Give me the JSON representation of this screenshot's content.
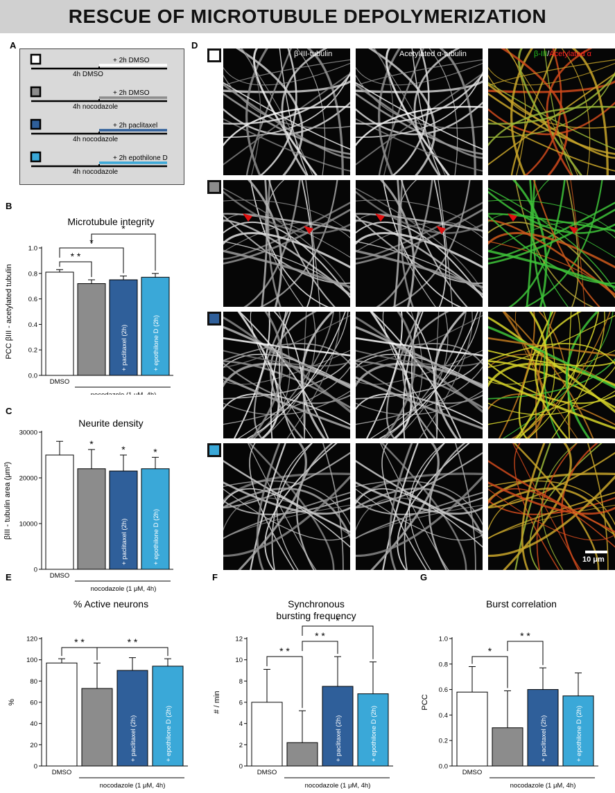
{
  "figure_title": "RESCUE OF MICROTUBULE DEPOLYMERIZATION",
  "colors": {
    "dmso": "#ffffff",
    "nocodazole": "#8c8c8c",
    "paclitaxel": "#2f5f9a",
    "epothilone": "#3aa8d8"
  },
  "panel_a": {
    "label": "A",
    "rows": [
      {
        "base": "4h DMSO",
        "treat": "+ 2h DMSO",
        "color": "#ffffff"
      },
      {
        "base": "4h nocodazole",
        "treat": "+ 2h DMSO",
        "color": "#8c8c8c"
      },
      {
        "base": "4h nocodazole",
        "treat": "+ 2h paclitaxel",
        "color": "#2f5f9a"
      },
      {
        "base": "4h nocodazole",
        "treat": "+ 2h epothilone D",
        "color": "#3aa8d8"
      }
    ]
  },
  "panel_d": {
    "label": "D",
    "col_labels": [
      "β-III-tubulin",
      "Acetylated α-tubulin"
    ],
    "merge_label": {
      "green": "β-III",
      "slash": "/",
      "red": "Acetylated α"
    },
    "scalebar": "10 μm",
    "row_colors": [
      "#ffffff",
      "#8c8c8c",
      "#2f5f9a",
      "#3aa8d8"
    ]
  },
  "chart_data": [
    {
      "panel": "B",
      "type": "bar",
      "title": "Microtubule integrity",
      "ylabel": "PCC βIII - acetylated tubulin",
      "ylim": [
        0,
        1.0
      ],
      "yticks": [
        "0.0",
        "0.2",
        "0.4",
        "0.6",
        "0.8",
        "1.0"
      ],
      "categories": [
        "DMSO",
        "",
        "+ paclitaxel (2h)",
        "+ epothilone D (2h)"
      ],
      "group_label": "nocodazole (1 μM, 4h)",
      "values": [
        0.81,
        0.72,
        0.75,
        0.77
      ],
      "errors": [
        0.02,
        0.03,
        0.03,
        0.03
      ],
      "significance": [
        {
          "from": 0,
          "to": 1,
          "stars": "* *"
        },
        {
          "from": 0,
          "to": 2,
          "stars": "*"
        },
        {
          "from": 1,
          "to": 3,
          "stars": "*"
        }
      ]
    },
    {
      "panel": "C",
      "type": "bar",
      "title": "Neurite density",
      "ylabel": "βIII - tubulin area (μm²)",
      "ylim": [
        0,
        30000
      ],
      "yticks": [
        "0",
        "10000",
        "20000",
        "30000"
      ],
      "categories": [
        "DMSO",
        "",
        "+ paclitaxel (2h)",
        "+ epothilone D (2h)"
      ],
      "group_label": "nocodazole (1 μM, 4h)",
      "values": [
        25000,
        22000,
        21500,
        22000
      ],
      "errors": [
        3000,
        4200,
        3500,
        2500
      ],
      "stars_above": [
        "",
        "*",
        "*",
        "*"
      ]
    },
    {
      "panel": "E",
      "type": "bar",
      "title": "% Active neurons",
      "ylabel": "%",
      "ylim": [
        0,
        120
      ],
      "yticks": [
        "0",
        "20",
        "40",
        "60",
        "80",
        "100",
        "120"
      ],
      "categories": [
        "DMSO",
        "",
        "+ paclitaxel (2h)",
        "+ epothilone D (2h)"
      ],
      "group_label": "nocodazole (1 μM, 4h)",
      "values": [
        97,
        73,
        90,
        94
      ],
      "errors": [
        4,
        24,
        12,
        7
      ],
      "significance": [
        {
          "from": 0,
          "to": 1,
          "stars": "* *"
        },
        {
          "from": 1,
          "to": 3,
          "stars": "* *"
        }
      ]
    },
    {
      "panel": "F",
      "type": "bar",
      "title": "Synchronous",
      "title2": "bursting frequency",
      "ylabel": "# / min",
      "ylim": [
        0,
        12
      ],
      "yticks": [
        "0",
        "2",
        "4",
        "6",
        "8",
        "10",
        "12"
      ],
      "categories": [
        "DMSO",
        "",
        "+ paclitaxel (2h)",
        "+ epothilone D (2h)"
      ],
      "group_label": "nocodazole (1 μM, 4h)",
      "values": [
        6.0,
        2.2,
        7.5,
        6.8
      ],
      "errors": [
        3.1,
        3.0,
        2.8,
        3.0
      ],
      "significance": [
        {
          "from": 0,
          "to": 1,
          "stars": "* *"
        },
        {
          "from": 1,
          "to": 2,
          "stars": "* *"
        },
        {
          "from": 1,
          "to": 3,
          "stars": "*"
        }
      ]
    },
    {
      "panel": "G",
      "type": "bar",
      "title": "Burst correlation",
      "ylabel": "PCC",
      "ylim": [
        0,
        1.0
      ],
      "yticks": [
        "0.0",
        "0.2",
        "0.4",
        "0.6",
        "0.8",
        "1.0"
      ],
      "categories": [
        "DMSO",
        "",
        "+ paclitaxel (2h)",
        "+ epothilone D (2h)"
      ],
      "group_label": "nocodazole (1 μM, 4h)",
      "values": [
        0.58,
        0.3,
        0.6,
        0.55
      ],
      "errors": [
        0.2,
        0.29,
        0.17,
        0.18
      ],
      "significance": [
        {
          "from": 0,
          "to": 1,
          "stars": "*"
        },
        {
          "from": 1,
          "to": 2,
          "stars": "* *"
        }
      ]
    }
  ]
}
